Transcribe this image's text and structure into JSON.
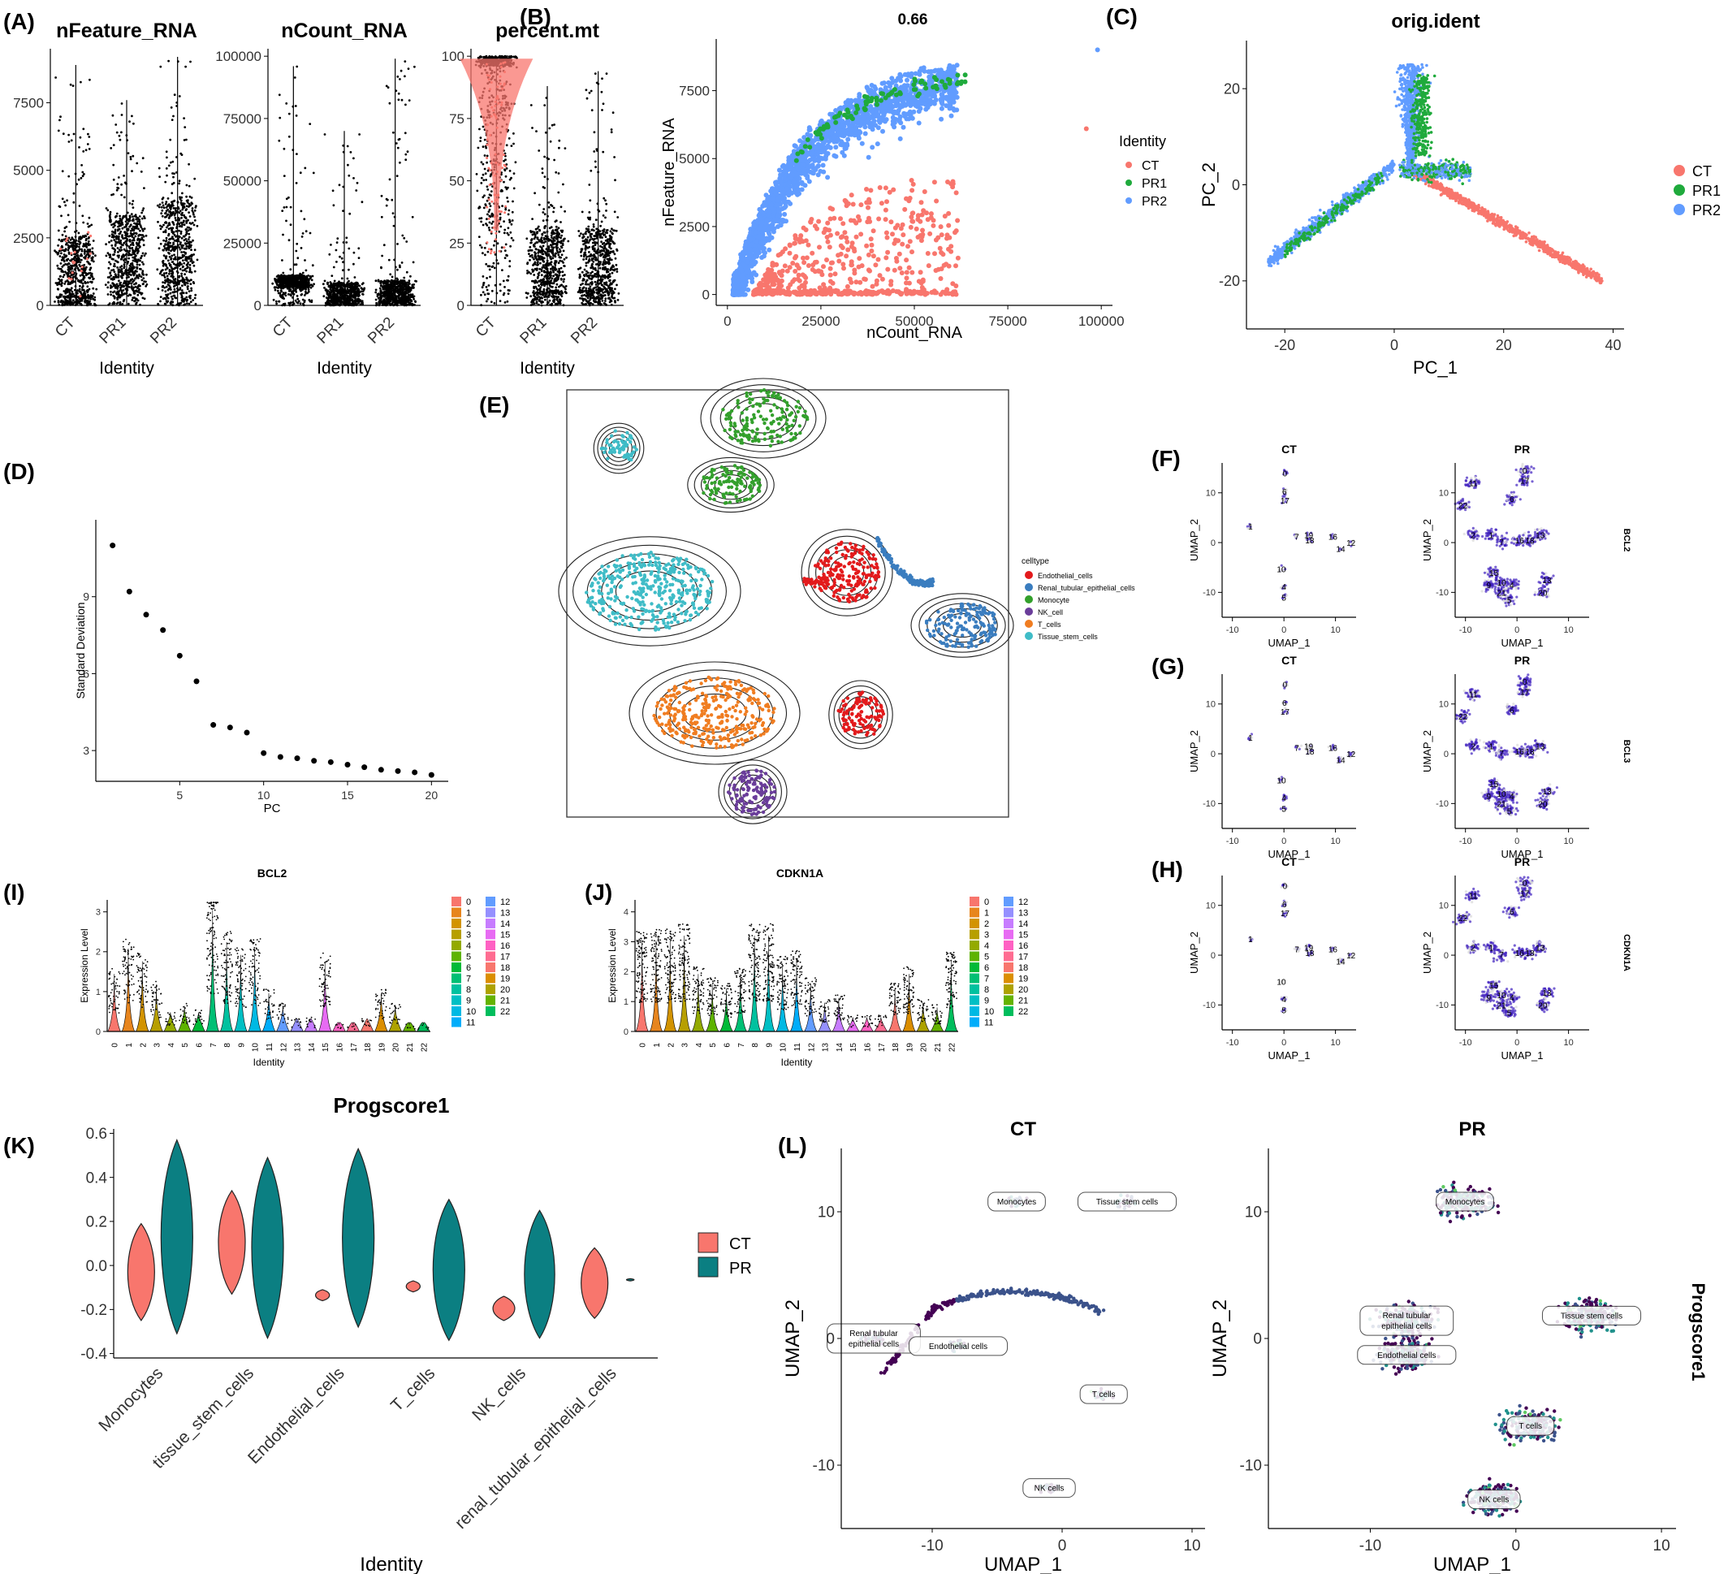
{
  "figure": {
    "panel_letters": [
      "(A)",
      "(B)",
      "(C)",
      "(D)",
      "(E)",
      "(F)",
      "(G)",
      "(H)",
      "(I)",
      "(J)",
      "(K)",
      "(L)"
    ],
    "colors": {
      "CT": "#f8766d",
      "PR1": "#1faa3c",
      "PR2": "#619cff",
      "PR": "#0b7f82",
      "black": "#000000",
      "umap_low": "#d9d9d9",
      "umap_high": "#3f1fbf",
      "viridis_low": "#440154",
      "viridis_mid": "#21918c",
      "viridis_high": "#fde725"
    }
  },
  "chart_data": [
    {
      "id": "A1",
      "type": "violin",
      "title": "nFeature_RNA",
      "xlabel": "Identity",
      "ylabel": "",
      "categories": [
        "CT",
        "PR1",
        "PR2"
      ],
      "ylim": [
        0,
        9500
      ],
      "yticks": [
        0,
        2500,
        5000,
        7500
      ],
      "ytick_labels": [
        "0",
        "2500",
        "5000",
        "7500"
      ],
      "series": [
        {
          "name": "CT",
          "median": 1200,
          "q1": 300,
          "q3": 2500,
          "max": 8900
        },
        {
          "name": "PR1",
          "median": 1900,
          "q1": 700,
          "q3": 3300,
          "max": 7600
        },
        {
          "name": "PR2",
          "median": 2100,
          "q1": 800,
          "q3": 3800,
          "max": 9200
        }
      ]
    },
    {
      "id": "A2",
      "type": "violin",
      "title": "nCount_RNA",
      "xlabel": "Identity",
      "ylabel": "",
      "categories": [
        "CT",
        "PR1",
        "PR2"
      ],
      "ylim": [
        0,
        103000
      ],
      "yticks": [
        0,
        25000,
        50000,
        75000,
        100000
      ],
      "ytick_labels": [
        "0",
        "25000",
        "50000",
        "75000",
        "100000"
      ],
      "series": [
        {
          "name": "CT",
          "median": 8500,
          "q1": 7000,
          "q3": 12000,
          "max": 96000
        },
        {
          "name": "PR1",
          "median": 3500,
          "q1": 1500,
          "q3": 9000,
          "max": 70000
        },
        {
          "name": "PR2",
          "median": 4000,
          "q1": 1500,
          "q3": 10000,
          "max": 99000
        }
      ]
    },
    {
      "id": "A3",
      "type": "violin",
      "title": "percent.mt",
      "xlabel": "Identity",
      "ylabel": "",
      "categories": [
        "CT",
        "PR1",
        "PR2"
      ],
      "ylim": [
        0,
        103
      ],
      "yticks": [
        0,
        25,
        50,
        75,
        100
      ],
      "ytick_labels": [
        "0",
        "25",
        "50",
        "75",
        "100"
      ],
      "series": [
        {
          "name": "CT",
          "median": 80,
          "q1": 30,
          "q3": 98,
          "max": 100
        },
        {
          "name": "PR1",
          "median": 12,
          "q1": 5,
          "q3": 30,
          "max": 88
        },
        {
          "name": "PR2",
          "median": 12,
          "q1": 5,
          "q3": 30,
          "max": 94
        }
      ]
    },
    {
      "id": "B",
      "type": "scatter",
      "title": "0.66",
      "xlabel": "nCount_RNA",
      "ylabel": "nFeature_RNA",
      "xlim": [
        -3000,
        103000
      ],
      "ylim": [
        -400,
        9400
      ],
      "xticks": [
        0,
        25000,
        50000,
        75000,
        100000
      ],
      "xtick_labels": [
        "0",
        "25000",
        "50000",
        "75000",
        "100000"
      ],
      "yticks": [
        0,
        2500,
        5000,
        7500
      ],
      "ytick_labels": [
        "0",
        "2500",
        "5000",
        "7500"
      ],
      "legend_title": "Identity",
      "legend_position": "right",
      "series": [
        {
          "name": "CT"
        },
        {
          "name": "PR1"
        },
        {
          "name": "PR2"
        }
      ]
    },
    {
      "id": "C",
      "type": "scatter",
      "title": "orig.ident",
      "xlabel": "PC_1",
      "ylabel": "PC_2",
      "xlim": [
        -27,
        42
      ],
      "ylim": [
        -30,
        30
      ],
      "xticks": [
        -20,
        0,
        20,
        40
      ],
      "xtick_labels": [
        "-20",
        "0",
        "20",
        "40"
      ],
      "yticks": [
        -20,
        0,
        20
      ],
      "ytick_labels": [
        "-20",
        "0",
        "20"
      ],
      "legend_position": "right",
      "series": [
        {
          "name": "CT"
        },
        {
          "name": "PR1"
        },
        {
          "name": "PR2"
        }
      ]
    },
    {
      "id": "D",
      "type": "scatter",
      "title": "",
      "xlabel": "PC",
      "ylabel": "Standard Deviation",
      "xlim": [
        0,
        21
      ],
      "ylim": [
        1.8,
        12
      ],
      "xticks": [
        5,
        10,
        15,
        20
      ],
      "xtick_labels": [
        "5",
        "10",
        "15",
        "20"
      ],
      "yticks": [
        3,
        6,
        9
      ],
      "ytick_labels": [
        "3",
        "6",
        "9"
      ],
      "x": [
        1,
        2,
        3,
        4,
        5,
        6,
        7,
        8,
        9,
        10,
        11,
        12,
        13,
        14,
        15,
        16,
        17,
        18,
        19,
        20
      ],
      "y": [
        11.0,
        9.2,
        8.3,
        7.7,
        6.7,
        5.7,
        4.0,
        3.9,
        3.7,
        2.9,
        2.75,
        2.7,
        2.6,
        2.55,
        2.45,
        2.35,
        2.25,
        2.2,
        2.15,
        2.05
      ]
    },
    {
      "id": "E",
      "type": "scatter",
      "title": "",
      "xlabel": "",
      "ylabel": "",
      "legend_title": "celltype",
      "legend_position": "right",
      "series": [
        {
          "name": "Endothelial_cells",
          "color": "#e31a1c"
        },
        {
          "name": "Renal_tubular_epithelial_cells",
          "color": "#3a7dbf"
        },
        {
          "name": "Monocyte",
          "color": "#33a02c"
        },
        {
          "name": "NK_cell",
          "color": "#6a3d9a"
        },
        {
          "name": "T_cells",
          "color": "#f07d21"
        },
        {
          "name": "Tissue_stem_cells",
          "color": "#3fbcc7"
        }
      ]
    },
    {
      "id": "FGH",
      "type": "scatter",
      "xlabel": "UMAP_1",
      "ylabel": "UMAP_2",
      "xlim": [
        -12,
        14
      ],
      "ylim": [
        -15,
        16
      ],
      "xticks": [
        -10,
        0,
        10
      ],
      "xtick_labels": [
        "-10",
        "0",
        "10"
      ],
      "yticks": [
        -10,
        0,
        10
      ],
      "ytick_labels": [
        "-10",
        "0",
        "10"
      ],
      "column_titles": [
        "CT",
        "PR"
      ],
      "genes": [
        "BCL2",
        "BCL3",
        "CDKN1A"
      ],
      "ct_labels": [
        {
          "text": "0",
          "x": 0.2,
          "y": 14.0
        },
        {
          "text": "6",
          "x": 0.1,
          "y": 10.3
        },
        {
          "text": "17",
          "x": 0.2,
          "y": 8.5
        },
        {
          "text": "1",
          "x": -6.5,
          "y": 3.3
        },
        {
          "text": "7",
          "x": 2.5,
          "y": 1.2
        },
        {
          "text": "19",
          "x": 4.8,
          "y": 1.6
        },
        {
          "text": "18",
          "x": 5.0,
          "y": 0.5
        },
        {
          "text": "16",
          "x": 9.5,
          "y": 1.2
        },
        {
          "text": "14",
          "x": 11.0,
          "y": -1.2
        },
        {
          "text": "12",
          "x": 13.0,
          "y": 0.0
        },
        {
          "text": "10",
          "x": -0.5,
          "y": -5.3
        },
        {
          "text": "4",
          "x": 0.0,
          "y": -8.8
        },
        {
          "text": "5",
          "x": 0.0,
          "y": -11.0
        }
      ],
      "pr_labels": [
        {
          "text": "0",
          "x": 1.5,
          "y": 14.5
        },
        {
          "text": "17",
          "x": 1.5,
          "y": 12.5
        },
        {
          "text": "11",
          "x": -8.5,
          "y": 12.0
        },
        {
          "text": "6",
          "x": -1.0,
          "y": 8.8
        },
        {
          "text": "22",
          "x": -10.5,
          "y": 7.5
        },
        {
          "text": "2",
          "x": -8.5,
          "y": 1.6
        },
        {
          "text": "1",
          "x": -5.0,
          "y": 1.6
        },
        {
          "text": "7",
          "x": -3.0,
          "y": 0.2
        },
        {
          "text": "16",
          "x": 0.5,
          "y": 0.5
        },
        {
          "text": "18",
          "x": 2.5,
          "y": 0.5
        },
        {
          "text": "13",
          "x": 4.5,
          "y": 1.6
        },
        {
          "text": "15",
          "x": -4.5,
          "y": -6.0
        },
        {
          "text": "10",
          "x": -3.0,
          "y": -8.0
        },
        {
          "text": "9",
          "x": -5.5,
          "y": -8.5
        },
        {
          "text": "4",
          "x": -1.0,
          "y": -8.5
        },
        {
          "text": "21",
          "x": -3.0,
          "y": -10.0
        },
        {
          "text": "5",
          "x": -1.5,
          "y": -11.5
        },
        {
          "text": "13",
          "x": 5.8,
          "y": -7.5
        },
        {
          "text": "20",
          "x": 5.0,
          "y": -10.0
        }
      ]
    },
    {
      "id": "I",
      "type": "violin",
      "title": "BCL2",
      "xlabel": "Identity",
      "ylabel": "Expression Level",
      "categories": [
        "0",
        "1",
        "2",
        "3",
        "4",
        "5",
        "6",
        "7",
        "8",
        "9",
        "10",
        "11",
        "12",
        "13",
        "14",
        "15",
        "16",
        "17",
        "18",
        "19",
        "20",
        "21",
        "22"
      ],
      "ylim": [
        0,
        3.3
      ],
      "yticks": [
        0,
        1,
        2,
        3
      ],
      "ytick_labels": [
        "0",
        "1",
        "2",
        "3"
      ],
      "colors": [
        "#f8766d",
        "#e7851e",
        "#d29300",
        "#b79f00",
        "#93aa00",
        "#5eb300",
        "#00ba38",
        "#00bf74",
        "#00c19f",
        "#00bfc4",
        "#00b9e3",
        "#00adfa",
        "#619cff",
        "#9590ff",
        "#c77cff",
        "#e76bf3",
        "#ff61c3",
        "#ff6c91",
        "#f8766d",
        "#db8e00",
        "#aea200",
        "#64b200",
        "#00bd5c"
      ],
      "legend_position": "right"
    },
    {
      "id": "J",
      "type": "violin",
      "title": "CDKN1A",
      "xlabel": "Identity",
      "ylabel": "Expression Level",
      "categories": [
        "0",
        "1",
        "2",
        "3",
        "4",
        "5",
        "6",
        "7",
        "8",
        "9",
        "10",
        "11",
        "12",
        "13",
        "14",
        "15",
        "16",
        "17",
        "18",
        "19",
        "20",
        "21",
        "22"
      ],
      "ylim": [
        0,
        4.4
      ],
      "yticks": [
        0,
        1,
        2,
        3,
        4
      ],
      "ytick_labels": [
        "0",
        "1",
        "2",
        "3",
        "4"
      ],
      "legend_position": "right"
    },
    {
      "id": "K",
      "type": "violin",
      "title": "Progscore1",
      "xlabel": "Identity",
      "ylabel": "",
      "categories": [
        "Monocytes",
        "tissue_stem_cells",
        "Endothelial_cells",
        "T_cells",
        "NK_cells",
        "renal_tubular_epithelial_cells"
      ],
      "ylim": [
        -0.42,
        0.62
      ],
      "yticks": [
        -0.4,
        -0.2,
        0.0,
        0.2,
        0.4,
        0.6
      ],
      "ytick_labels": [
        "-0.4",
        "-0.2",
        "0.0",
        "0.2",
        "0.4",
        "0.6"
      ],
      "legend_position": "right",
      "series": [
        {
          "name": "CT",
          "mins": [
            -0.25,
            -0.13,
            -0.16,
            -0.12,
            -0.25,
            -0.24
          ],
          "maxs": [
            0.19,
            0.34,
            -0.11,
            -0.07,
            -0.14,
            0.08
          ]
        },
        {
          "name": "PR",
          "mins": [
            -0.31,
            -0.33,
            -0.28,
            -0.34,
            -0.33,
            -0.07
          ],
          "maxs": [
            0.57,
            0.49,
            0.53,
            0.3,
            0.25,
            -0.06
          ]
        }
      ]
    },
    {
      "id": "L",
      "type": "scatter",
      "xlabel": "UMAP_1",
      "ylabel": "UMAP_2",
      "colorbar_label": "Progscore1",
      "column_titles": [
        "CT",
        "PR"
      ],
      "xlim": [
        -17,
        11
      ],
      "ylim": [
        -15,
        15
      ],
      "xticks": [
        -10,
        0,
        10
      ],
      "xtick_labels": [
        "-10",
        "0",
        "10"
      ],
      "yticks": [
        -10,
        0,
        10
      ],
      "ytick_labels": [
        "-10",
        "0",
        "10"
      ],
      "ct_labels": [
        {
          "text": "Monocytes",
          "x": -3.5,
          "y": 10.8
        },
        {
          "text": "Tissue stem cells",
          "x": 5.0,
          "y": 10.8
        },
        {
          "text": "Renal tubular\nepithelial cells",
          "x": -14.5,
          "y": 0.0
        },
        {
          "text": "Endothelial cells",
          "x": -8.0,
          "y": -0.6
        },
        {
          "text": "T cells",
          "x": 3.2,
          "y": -4.4
        },
        {
          "text": "NK cells",
          "x": -1.0,
          "y": -11.8
        }
      ],
      "pr_labels": [
        {
          "text": "Monocytes",
          "x": -3.5,
          "y": 10.8
        },
        {
          "text": "Tissue stem cells",
          "x": 5.2,
          "y": 1.8
        },
        {
          "text": "Renal tubular\nepithelial cells",
          "x": -7.5,
          "y": 1.4
        },
        {
          "text": "Endothelial cells",
          "x": -7.5,
          "y": -1.3
        },
        {
          "text": "T cells",
          "x": 1.0,
          "y": -6.9
        },
        {
          "text": "NK cells",
          "x": -1.5,
          "y": -12.7
        }
      ]
    }
  ]
}
